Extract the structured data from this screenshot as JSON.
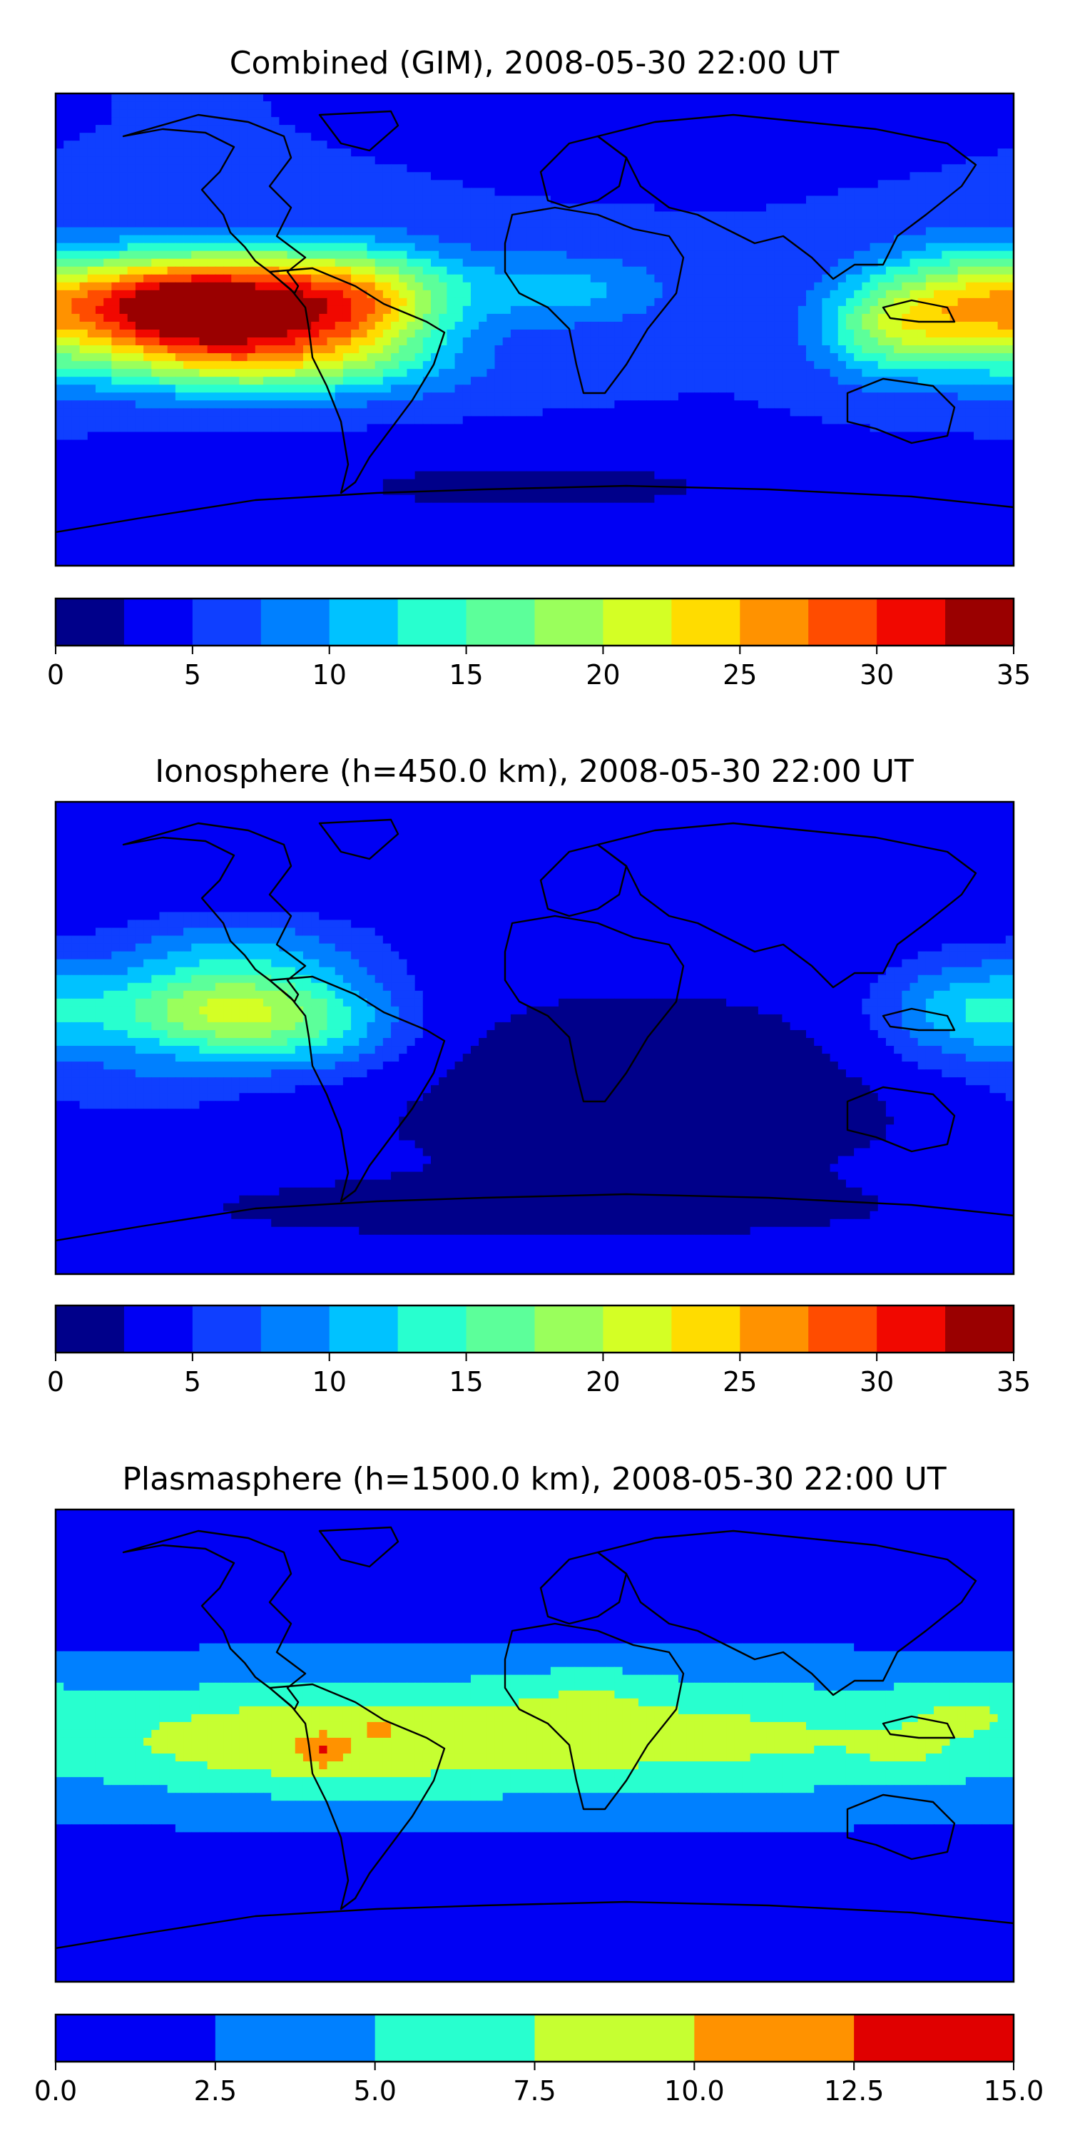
{
  "panels": [
    {
      "title": "Combined (GIM), 2008-05-30 22:00 UT",
      "field": {
        "base": 5,
        "blobs": [
          {
            "lon": -112,
            "lat": 5,
            "rx": 48,
            "ry": 20,
            "v": 28
          },
          {
            "lon": -145,
            "lat": 10,
            "rx": 30,
            "ry": 18,
            "v": 10
          },
          {
            "lon": -60,
            "lat": 8,
            "rx": 32,
            "ry": 20,
            "v": 12
          },
          {
            "lon": -95,
            "lat": 22,
            "rx": 55,
            "ry": 14,
            "v": 6
          },
          {
            "lon": -100,
            "lat": -15,
            "rx": 70,
            "ry": 12,
            "v": 7
          },
          {
            "lon": 10,
            "lat": 15,
            "rx": 40,
            "ry": 14,
            "v": 6
          },
          {
            "lon": 165,
            "lat": 8,
            "rx": 38,
            "ry": 22,
            "v": 18
          },
          {
            "lon": 130,
            "lat": 0,
            "rx": 25,
            "ry": 18,
            "v": 8
          },
          {
            "lon": 0,
            "lat": -60,
            "rx": 140,
            "ry": 16,
            "v": -3
          },
          {
            "lon": 60,
            "lat": 68,
            "rx": 50,
            "ry": 10,
            "v": -2
          }
        ]
      },
      "colorbar": {
        "colors": [
          "#00008a",
          "#0000f4",
          "#0f3fff",
          "#0080ff",
          "#00c2ff",
          "#28ffcf",
          "#5cff9a",
          "#9aff5c",
          "#d4ff25",
          "#ffdc00",
          "#ff9200",
          "#ff4c00",
          "#f10800",
          "#9a0000"
        ],
        "ticks": [
          "0",
          "5",
          "10",
          "15",
          "20",
          "25",
          "30",
          "35"
        ],
        "min": 0,
        "max": 35,
        "step": 2.5
      }
    },
    {
      "title": "Ionosphere  (h=450.0 km), 2008-05-30 22:00 UT",
      "field": {
        "base": 3,
        "blobs": [
          {
            "lon": -120,
            "lat": 10,
            "rx": 45,
            "ry": 18,
            "v": 16
          },
          {
            "lon": -80,
            "lat": 5,
            "rx": 35,
            "ry": 20,
            "v": 6
          },
          {
            "lon": -110,
            "lat": 35,
            "rx": 50,
            "ry": 14,
            "v": 5
          },
          {
            "lon": 165,
            "lat": 10,
            "rx": 35,
            "ry": 20,
            "v": 9
          },
          {
            "lon": -150,
            "lat": -20,
            "rx": 40,
            "ry": 12,
            "v": 3
          },
          {
            "lon": 40,
            "lat": -20,
            "rx": 90,
            "ry": 30,
            "v": -2
          },
          {
            "lon": 0,
            "lat": -65,
            "rx": 140,
            "ry": 12,
            "v": -1
          }
        ]
      },
      "colorbar": {
        "colors": [
          "#00008a",
          "#0000f4",
          "#0f3fff",
          "#0080ff",
          "#00c2ff",
          "#28ffcf",
          "#5cff9a",
          "#9aff5c",
          "#d4ff25",
          "#ffdc00",
          "#ff9200",
          "#ff4c00",
          "#f10800",
          "#9a0000"
        ],
        "ticks": [
          "0",
          "5",
          "10",
          "15",
          "20",
          "25",
          "30",
          "35"
        ],
        "min": 0,
        "max": 35,
        "step": 2.5
      }
    },
    {
      "title": "Plasmasphere (h=1500.0 km), 2008-05-30 22:00 UT",
      "field": {
        "base": 1.5,
        "blobs": [
          {
            "lon": 0,
            "lat": 3,
            "rx": 260,
            "ry": 26,
            "v": 7.2
          },
          {
            "lon": -90,
            "lat": 0,
            "rx": 60,
            "ry": 18,
            "v": 1.8
          },
          {
            "lon": 20,
            "lat": 22,
            "rx": 25,
            "ry": 10,
            "v": 1.5
          },
          {
            "lon": 165,
            "lat": 15,
            "rx": 25,
            "ry": 12,
            "v": 2.2
          },
          {
            "lon": 140,
            "lat": -5,
            "rx": 20,
            "ry": 10,
            "v": 1.2
          },
          {
            "lon": -80,
            "lat": -3,
            "rx": 7,
            "ry": 5,
            "v": 3.5
          },
          {
            "lon": -58,
            "lat": 7,
            "rx": 4,
            "ry": 3,
            "v": 3.2
          }
        ]
      },
      "colorbar": {
        "colors": [
          "#0000f4",
          "#0080ff",
          "#28ffcf",
          "#c6ff31",
          "#ff9200",
          "#e00000"
        ],
        "ticks": [
          "0.0",
          "2.5",
          "5.0",
          "7.5",
          "10.0",
          "12.5",
          "15.0"
        ],
        "min": 0,
        "max": 15,
        "step": 2.5
      }
    }
  ]
}
